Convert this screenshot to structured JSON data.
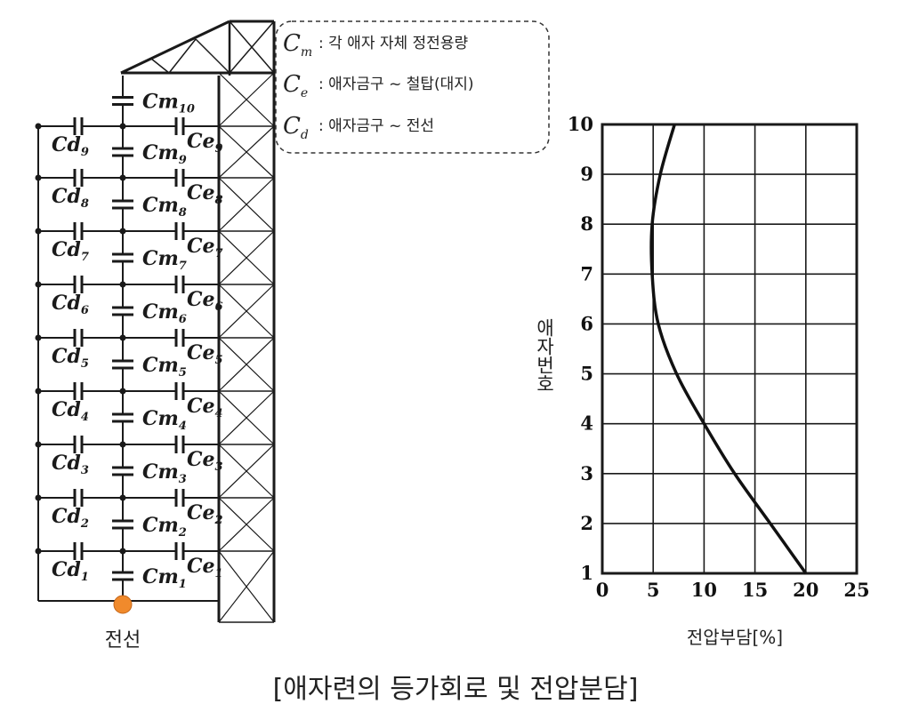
{
  "legend": {
    "items": [
      {
        "symbol": "C",
        "sub": "m",
        "text": ": 각 애자 자체 정전용량"
      },
      {
        "symbol": "C",
        "sub": "e",
        "text": ": 애자금구 ~ 철탑(대지)"
      },
      {
        "symbol": "C",
        "sub": "d",
        "text": ": 애자금구 ~ 전선"
      }
    ]
  },
  "circuit": {
    "cm_labels": [
      {
        "base": "Cm",
        "sub": "1"
      },
      {
        "base": "Cm",
        "sub": "2"
      },
      {
        "base": "Cm",
        "sub": "3"
      },
      {
        "base": "Cm",
        "sub": "4"
      },
      {
        "base": "Cm",
        "sub": "5"
      },
      {
        "base": "Cm",
        "sub": "6"
      },
      {
        "base": "Cm",
        "sub": "7"
      },
      {
        "base": "Cm",
        "sub": "8"
      },
      {
        "base": "Cm",
        "sub": "9"
      },
      {
        "base": "Cm",
        "sub": "10"
      }
    ],
    "cd_labels": [
      {
        "base": "Cd",
        "sub": "1"
      },
      {
        "base": "Cd",
        "sub": "2"
      },
      {
        "base": "Cd",
        "sub": "3"
      },
      {
        "base": "Cd",
        "sub": "4"
      },
      {
        "base": "Cd",
        "sub": "5"
      },
      {
        "base": "Cd",
        "sub": "6"
      },
      {
        "base": "Cd",
        "sub": "7"
      },
      {
        "base": "Cd",
        "sub": "8"
      },
      {
        "base": "Cd",
        "sub": "9"
      }
    ],
    "ce_labels": [
      {
        "base": "Ce",
        "sub": "1"
      },
      {
        "base": "Ce",
        "sub": "2"
      },
      {
        "base": "Ce",
        "sub": "3"
      },
      {
        "base": "Ce",
        "sub": "4"
      },
      {
        "base": "Ce",
        "sub": "5"
      },
      {
        "base": "Ce",
        "sub": "6"
      },
      {
        "base": "Ce",
        "sub": "7"
      },
      {
        "base": "Ce",
        "sub": "8"
      },
      {
        "base": "Ce",
        "sub": "9"
      }
    ],
    "wire_label": "전선",
    "wire_color": "#f08a2c"
  },
  "chart_data": {
    "type": "line",
    "x_ticks": [
      "0",
      "5",
      "10",
      "15",
      "20",
      "25"
    ],
    "y_ticks": [
      "1",
      "2",
      "3",
      "4",
      "5",
      "6",
      "7",
      "8",
      "9",
      "10"
    ],
    "xlim": [
      0,
      25
    ],
    "ylim": [
      1,
      10
    ],
    "xlabel": "전압부담[%]",
    "ylabel": "애자번호",
    "grid": true,
    "series": [
      {
        "x": [
          20.0,
          16.5,
          13.0,
          10.0,
          7.3,
          5.5,
          4.9,
          4.9,
          5.7,
          7.1
        ],
        "y": [
          1,
          2,
          3,
          4,
          5,
          6,
          7,
          8,
          9,
          10
        ]
      }
    ]
  },
  "caption": "[애자련의 등가회로 및 전압분담]"
}
